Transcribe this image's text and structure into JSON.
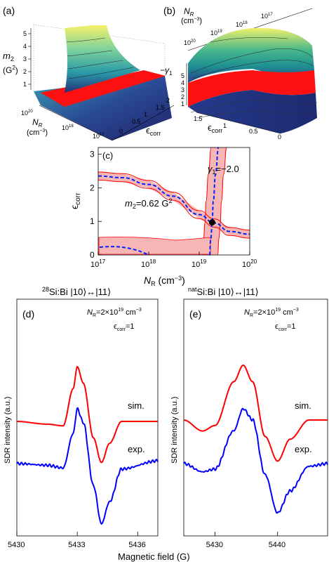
{
  "figure": {
    "panel_labels": {
      "a": "(a)",
      "b": "(b)",
      "c": "(c)",
      "d": "(d)",
      "e": "(e)"
    },
    "colors": {
      "sim": "#ff0000",
      "exp": "#0000ff",
      "contour_dash": "#0022ff",
      "band_fill": "#f7b6b6",
      "band_edge": "#ff0000"
    }
  },
  "panel_a": {
    "z_axis": {
      "label_main": "m",
      "label_sub": "2",
      "label_unit": "(G",
      "label_unit_sup": "2",
      "label_close": ")",
      "ticks": [
        "5",
        "4",
        "3",
        "2",
        "1"
      ]
    },
    "n_axis": {
      "label_main": "N",
      "label_sub": "R",
      "label_unit": "(cm",
      "label_unit_sup": "−3",
      "label_close": ")",
      "ticks": [
        "10",
        "10",
        "10"
      ],
      "tick_exps": [
        "20",
        "18",
        "17"
      ]
    },
    "e_axis": {
      "label": "ϵ",
      "label_sub": "corr",
      "ticks": [
        "0",
        "0.5",
        "1",
        "1.5",
        "2"
      ]
    }
  },
  "panel_b": {
    "n_axis": {
      "label_main": "N",
      "label_sub": "R",
      "label_unit": "(cm",
      "label_unit_sup": "−3",
      "label_close": ")",
      "ticks": [
        "10",
        "10",
        "10",
        "10"
      ],
      "tick_exps": [
        "20",
        "19",
        "18",
        "17"
      ]
    },
    "z_axis": {
      "label": "−γ",
      "label_sub": "1",
      "ticks": [
        "5",
        "4",
        "3",
        "2",
        "1"
      ]
    },
    "e_axis": {
      "label": "ϵ",
      "label_sub": "corr",
      "ticks": [
        "1.5",
        "1",
        "0.5",
        "0"
      ]
    }
  },
  "panel_c": {
    "xlabel_main": "N",
    "xlabel_sub": "R",
    "xlabel_unit": " (cm",
    "xlabel_sup": "−3",
    "xlabel_close": ")",
    "ylabel": "ϵ",
    "ylabel_sub": "corr",
    "annotation_gamma": "γ",
    "annotation_gamma_sub": "1",
    "annotation_gamma_val": "=−2.0",
    "annotation_m2": "m",
    "annotation_m2_sub": "2",
    "annotation_m2_val": "=0.62 G",
    "annotation_m2_sup": "2"
  },
  "panel_d": {
    "title_sup": "28",
    "title": "Si:Bi |10⟩↔|11⟩",
    "nr_label": "N",
    "nr_sub": "R",
    "nr_value": "=2×10",
    "nr_exp": "19",
    "nr_unit": " cm",
    "nr_unit_exp": "−3",
    "eps_label": "ϵ",
    "eps_sub": "corr",
    "eps_value": "=1",
    "sim_label": "sim.",
    "exp_label": "exp."
  },
  "panel_e": {
    "title_sup": "nat",
    "title": "Si:Bi |10⟩↔|11⟩",
    "nr_label": "N",
    "nr_sub": "R",
    "nr_value": "=2×10",
    "nr_exp": "19",
    "nr_unit": " cm",
    "nr_unit_exp": "−3",
    "eps_label": "ϵ",
    "eps_sub": "corr",
    "eps_value": "=1",
    "sim_label": "sim.",
    "exp_label": "exp."
  },
  "shared": {
    "ylabel_spectra": "SDR intensity (a.u.)",
    "xlabel_spectra": "Magnetic field (G)"
  },
  "chart_data": [
    {
      "type": "line",
      "panel": "c",
      "xlabel": "N_R (cm^-3)",
      "ylabel": "ϵ_corr",
      "x_scale": "log",
      "xlim": [
        1e+17,
        1e+20
      ],
      "ylim": [
        0,
        3.2
      ],
      "x_ticks": [
        "10^17",
        "10^18",
        "10^19",
        "10^20"
      ],
      "y_ticks": [
        "0",
        "1",
        "2",
        "3"
      ],
      "series": [
        {
          "name": "m2=0.62 G^2",
          "x": [
            1e+17,
            3e+17,
            1e+18,
            3e+18,
            1e+19,
            2e+19,
            4e+19,
            1e+20
          ],
          "values": [
            2.35,
            2.3,
            2.1,
            1.75,
            1.2,
            0.95,
            0.7,
            0.62
          ]
        },
        {
          "name": "γ1=−2.0",
          "x": [
            1.6e+19,
            1.7e+19,
            1.8e+19,
            1.9e+19,
            2.1e+19,
            2.4e+19
          ],
          "values": [
            0.0,
            0.5,
            0.95,
            1.6,
            2.4,
            3.2
          ]
        }
      ],
      "intersection": {
        "x": 1.8e+19,
        "y": 0.97
      }
    },
    {
      "type": "line",
      "panel": "d",
      "xlabel": "Magnetic field (G)",
      "ylabel": "SDR intensity (a.u.)",
      "xlim": [
        5430,
        5437
      ],
      "x_ticks": [
        "5430",
        "5433",
        "5436"
      ],
      "series": [
        {
          "name": "sim.",
          "x": [
            5430,
            5431.5,
            5432.3,
            5432.8,
            5433.0,
            5433.3,
            5433.8,
            5434.2,
            5434.6,
            5435.2,
            5437
          ],
          "values": [
            0.0,
            -0.05,
            -0.08,
            0.6,
            1.0,
            0.7,
            -0.3,
            -0.75,
            -0.4,
            0.0,
            0.0
          ]
        },
        {
          "name": "exp.",
          "x": [
            5430,
            5431.5,
            5432.3,
            5432.8,
            5433.0,
            5433.3,
            5433.8,
            5434.2,
            5434.6,
            5435.2,
            5437
          ],
          "values": [
            0.0,
            -0.03,
            -0.08,
            0.55,
            1.0,
            0.75,
            -0.4,
            -1.1,
            -0.7,
            -0.1,
            0.05
          ]
        }
      ]
    },
    {
      "type": "line",
      "panel": "e",
      "xlabel": "Magnetic field (G)",
      "ylabel": "SDR intensity (a.u.)",
      "xlim": [
        5425,
        5448
      ],
      "x_ticks": [
        "5430",
        "5440"
      ],
      "series": [
        {
          "name": "sim.",
          "x": [
            5425,
            5428,
            5430,
            5433,
            5434.5,
            5436,
            5438,
            5440,
            5442,
            5445,
            5448
          ],
          "values": [
            0.0,
            -0.2,
            -0.1,
            0.7,
            1.0,
            0.7,
            -0.3,
            -0.75,
            -0.35,
            0.0,
            0.0
          ]
        },
        {
          "name": "exp.",
          "x": [
            5425,
            5428,
            5430,
            5433,
            5434.5,
            5436,
            5438,
            5440,
            5442,
            5445,
            5448
          ],
          "values": [
            0.0,
            -0.15,
            -0.1,
            0.6,
            1.0,
            0.8,
            -0.2,
            -0.9,
            -0.5,
            -0.05,
            0.0
          ]
        }
      ]
    }
  ]
}
